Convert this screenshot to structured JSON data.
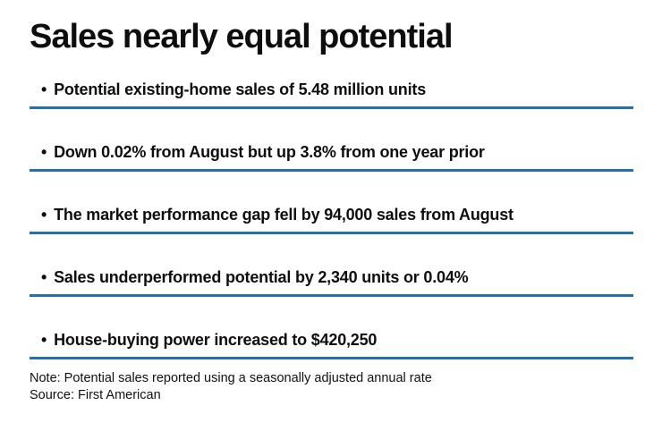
{
  "page": {
    "background_color": "#ffffff",
    "text_color": "#0e0e0e",
    "rule_color": "#2271b4"
  },
  "title": "Sales nearly equal potential",
  "bullets": [
    {
      "marker": "•",
      "text": "Potential existing-home sales of 5.48 million units"
    },
    {
      "marker": "•",
      "text": "Down 0.02% from August but up 3.8% from one year prior"
    },
    {
      "marker": "•",
      "text": "The market performance gap fell by 94,000 sales from August"
    },
    {
      "marker": "•",
      "text": "Sales underperformed potential by 2,340 units or 0.04%"
    },
    {
      "marker": "•",
      "text": "House-buying power increased to $420,250"
    }
  ],
  "footnotes": {
    "note": "Note: Potential sales reported using a seasonally adjusted annual rate",
    "source": "Source: First American"
  }
}
